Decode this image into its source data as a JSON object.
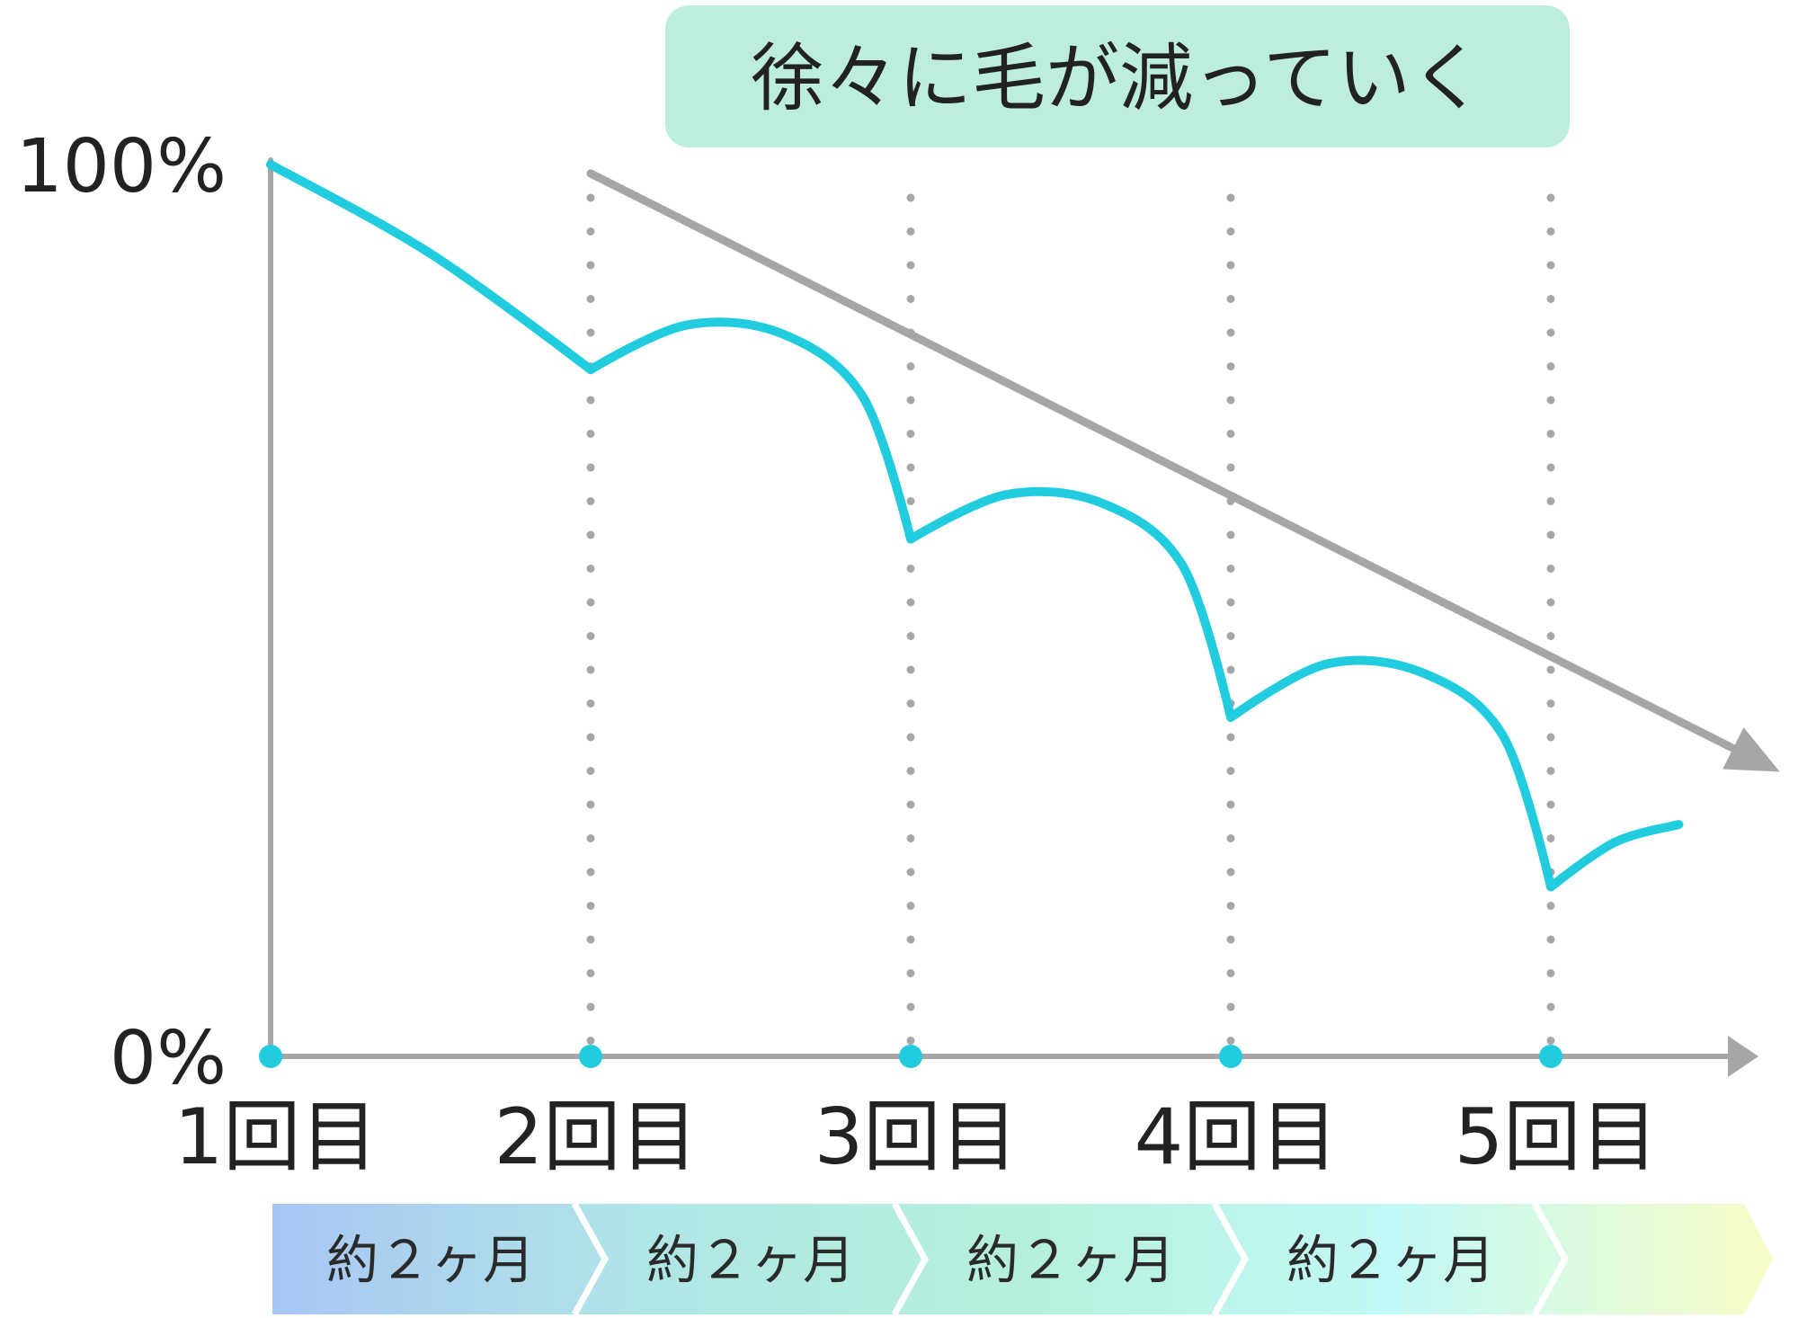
{
  "chart_data": {
    "type": "line",
    "title": "徐々に毛が減っていく",
    "xlabel": "",
    "ylabel": "",
    "categories": [
      "1回目",
      "2回目",
      "3回目",
      "4回目",
      "5回目"
    ],
    "ylim": [
      0,
      100
    ],
    "yticks": [
      {
        "value": 100,
        "label": "100%"
      },
      {
        "value": 0,
        "label": "0%"
      }
    ],
    "grid": "vertical dotted lines at each session",
    "series": [
      {
        "kind": "hair-amount",
        "color": "#22ccdf",
        "points": [
          {
            "x": 0,
            "y": 100
          },
          {
            "x": 0.5,
            "y": 90
          },
          {
            "x": 1,
            "y": 77
          },
          {
            "x": 1.3,
            "y": 82
          },
          {
            "x": 1.6,
            "y": 81
          },
          {
            "x": 1.85,
            "y": 74
          },
          {
            "x": 2,
            "y": 58
          },
          {
            "x": 2.3,
            "y": 63
          },
          {
            "x": 2.6,
            "y": 62
          },
          {
            "x": 2.85,
            "y": 55
          },
          {
            "x": 3,
            "y": 38
          },
          {
            "x": 3.3,
            "y": 44
          },
          {
            "x": 3.6,
            "y": 43
          },
          {
            "x": 3.85,
            "y": 36
          },
          {
            "x": 4,
            "y": 19
          },
          {
            "x": 4.2,
            "y": 24
          },
          {
            "x": 4.4,
            "y": 26
          }
        ]
      },
      {
        "kind": "trend-arrow",
        "color": "#a6a6a8",
        "points": [
          {
            "x": 1,
            "y": 99
          },
          {
            "x": 4.6,
            "y": 34
          }
        ]
      }
    ],
    "session_marker_color": "#22ccdf",
    "axis_color": "#a6a6a8",
    "title_bg_color": "#bdeedc",
    "periods": [
      "約２ヶ月",
      "約２ヶ月",
      "約２ヶ月",
      "約２ヶ月",
      ""
    ],
    "period_gradient": [
      "#a8c6f4",
      "#b0e6e6",
      "#b6f0dc",
      "#c2f8f6",
      "#f8fcc6"
    ]
  }
}
